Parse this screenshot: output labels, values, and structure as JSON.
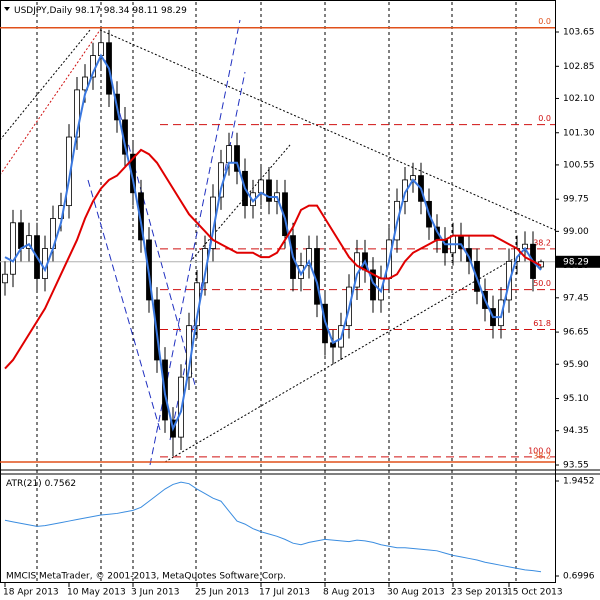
{
  "chart_data": {
    "type": "candlestick",
    "symbol": "USDJPY,Daily",
    "ylim": [
      93.48,
      104.35
    ],
    "yticks": [
      103.65,
      102.85,
      {
        "value": 102.1,
        "label": "102.10"
      },
      {
        "value": 101.3,
        "label": "101.30"
      },
      100.55,
      99.75,
      {
        "value": 99.0,
        "label": "99.00"
      },
      {
        "value": 98.2,
        "label": "98.20"
      },
      97.45,
      96.65,
      {
        "value": 95.9,
        "label": "95.90"
      },
      {
        "value": 95.1,
        "label": "95.10"
      },
      94.35,
      93.55
    ],
    "xticks": [
      {
        "value": 0,
        "label": "18 Apr 2013"
      },
      {
        "value": 8,
        "label": "10 May 2013"
      },
      {
        "value": 16,
        "label": "3 Jun 2013"
      },
      {
        "value": 24,
        "label": "25 Jun 2013"
      },
      {
        "value": 32,
        "label": "17 Jul 2013"
      },
      {
        "value": 40,
        "label": "8 Aug 2013"
      },
      {
        "value": 48,
        "label": "30 Aug 2013"
      },
      {
        "value": 56,
        "label": "23 Sep 2013"
      },
      {
        "value": 63,
        "label": "15 Oct 2013"
      }
    ],
    "bull_color": "#ffffff",
    "bear_color": "#000000",
    "open": [
      97.8,
      98.0,
      99.2,
      98.6,
      98.9,
      97.9,
      98.6,
      99.3,
      99.6,
      101.2,
      102.3,
      102.6,
      103.1,
      103.4,
      102.2,
      101.6,
      100.8,
      99.9,
      98.8,
      97.4,
      96.0,
      94.6,
      94.2,
      95.6,
      96.8,
      97.8,
      98.6,
      99.8,
      100.6,
      101.0,
      100.4,
      99.6,
      99.9,
      100.2,
      99.7,
      99.9,
      98.9,
      97.9,
      98.2,
      98.6,
      97.3,
      96.4,
      96.3,
      96.8,
      97.7,
      98.5,
      98.1,
      97.4,
      97.9,
      98.8,
      99.7,
      100.2,
      100.3,
      99.7,
      99.1,
      98.8,
      98.5,
      98.9,
      98.6,
      98.3,
      97.6,
      97.2,
      96.8,
      97.4,
      98.3,
      98.6,
      98.7,
      98.17
    ],
    "high": [
      98.3,
      99.5,
      99.5,
      99.2,
      99.2,
      98.9,
      99.6,
      99.9,
      101.5,
      102.6,
      102.9,
      103.4,
      103.74,
      103.7,
      102.5,
      101.9,
      101.1,
      100.2,
      99.1,
      97.7,
      96.3,
      94.9,
      95.9,
      97.1,
      98.1,
      98.9,
      100.1,
      100.9,
      101.3,
      101.3,
      100.7,
      100.2,
      100.5,
      100.5,
      100.2,
      100.2,
      99.2,
      98.5,
      98.9,
      98.9,
      97.6,
      96.7,
      97.1,
      98.0,
      98.8,
      98.8,
      98.4,
      98.2,
      99.1,
      100.0,
      100.5,
      100.6,
      100.6,
      100.0,
      99.4,
      99.1,
      99.2,
      99.2,
      98.9,
      98.6,
      97.9,
      97.5,
      97.7,
      98.6,
      98.9,
      99.0,
      99.0,
      98.34
    ],
    "low": [
      97.5,
      97.7,
      98.3,
      98.3,
      97.6,
      97.6,
      98.3,
      99.0,
      99.3,
      100.9,
      102.0,
      102.3,
      102.8,
      101.9,
      101.3,
      100.5,
      99.6,
      98.5,
      97.1,
      95.7,
      94.3,
      93.75,
      93.9,
      95.3,
      96.5,
      97.5,
      98.3,
      99.5,
      100.3,
      100.1,
      99.3,
      99.3,
      99.6,
      99.4,
      99.4,
      98.6,
      97.6,
      97.6,
      97.9,
      97.0,
      96.1,
      95.9,
      96.0,
      96.5,
      97.4,
      97.8,
      97.1,
      97.1,
      97.6,
      98.5,
      99.4,
      99.9,
      99.4,
      98.8,
      98.5,
      98.2,
      98.2,
      98.3,
      98.0,
      97.3,
      96.9,
      96.5,
      96.5,
      97.1,
      98.0,
      98.3,
      97.6,
      98.11
    ],
    "close": [
      98.0,
      99.2,
      98.6,
      98.9,
      97.9,
      98.6,
      99.3,
      99.6,
      101.2,
      102.3,
      102.6,
      103.1,
      103.4,
      102.2,
      101.6,
      100.8,
      99.9,
      98.8,
      97.4,
      96.0,
      94.6,
      94.2,
      95.6,
      96.8,
      97.8,
      98.6,
      99.8,
      100.6,
      101.0,
      100.4,
      99.6,
      99.9,
      100.2,
      99.7,
      99.9,
      98.9,
      97.9,
      98.2,
      98.6,
      97.3,
      96.4,
      96.3,
      96.8,
      97.7,
      98.5,
      98.1,
      97.4,
      97.9,
      98.8,
      99.7,
      100.2,
      100.3,
      99.7,
      99.1,
      98.8,
      98.5,
      98.9,
      98.6,
      98.3,
      97.6,
      97.2,
      96.8,
      97.4,
      98.3,
      98.6,
      98.7,
      97.9,
      98.29
    ],
    "overlays": [
      {
        "color": "#3a78e0",
        "values": [
          98.4,
          98.3,
          98.6,
          98.7,
          98.4,
          98.1,
          98.6,
          99.2,
          100.2,
          101.3,
          102.2,
          102.7,
          103.1,
          102.8,
          101.9,
          101.0,
          100.2,
          99.2,
          98.0,
          96.6,
          95.2,
          94.4,
          94.8,
          95.8,
          97.0,
          98.0,
          99.0,
          100.0,
          100.6,
          100.6,
          100.0,
          99.7,
          99.9,
          99.8,
          99.8,
          99.3,
          98.4,
          98.0,
          98.3,
          97.8,
          96.9,
          96.4,
          96.5,
          97.2,
          98.0,
          98.3,
          97.8,
          97.6,
          98.3,
          99.2,
          99.9,
          100.2,
          100.0,
          99.4,
          99.0,
          98.7,
          98.7,
          98.7,
          98.4,
          97.9,
          97.4,
          97.0,
          97.0,
          97.8,
          98.4,
          98.6,
          98.3,
          98.1
        ]
      },
      {
        "color": "#e00000",
        "values": [
          95.8,
          96.0,
          96.3,
          96.6,
          96.9,
          97.2,
          97.6,
          98.0,
          98.4,
          98.8,
          99.3,
          99.7,
          100.0,
          100.2,
          100.3,
          100.5,
          100.7,
          100.9,
          100.8,
          100.6,
          100.3,
          100.0,
          99.7,
          99.4,
          99.2,
          99.0,
          98.8,
          98.7,
          98.6,
          98.5,
          98.5,
          98.5,
          98.4,
          98.4,
          98.5,
          98.8,
          99.1,
          99.5,
          99.6,
          99.6,
          99.3,
          99.0,
          98.7,
          98.4,
          98.2,
          98.1,
          98.0,
          97.9,
          97.9,
          98.0,
          98.3,
          98.5,
          98.6,
          98.7,
          98.8,
          98.8,
          98.9,
          98.9,
          98.9,
          98.9,
          98.9,
          98.9,
          98.8,
          98.7,
          98.6,
          98.4,
          98.3,
          98.2
        ]
      }
    ],
    "fib_levels": [
      {
        "label": "0.0",
        "value": 103.75,
        "color": "#e0501b",
        "dashed": false
      },
      {
        "label": "0.0",
        "value": 101.49,
        "color": "#d01010",
        "dashed": true
      },
      {
        "label": "38.2",
        "value": 98.59,
        "color": "#d01010",
        "dashed": true
      },
      {
        "label": "50.0",
        "value": 97.64,
        "color": "#d01010",
        "dashed": true
      },
      {
        "label": "61.8",
        "value": 96.71,
        "color": "#d01010",
        "dashed": true
      },
      {
        "label": "100.0",
        "value": 93.74,
        "color": "#d01010",
        "dashed": true
      },
      {
        "label": "38.2",
        "value": 93.62,
        "color": "#e0501b",
        "dashed": false
      }
    ],
    "indicator": {
      "name": "ATR(21)",
      "color": "#3b8de0",
      "ylim": [
        0.608,
        2.037
      ],
      "yticks": [
        1.9452,
        0.6996
      ],
      "values": [
        1.43,
        1.41,
        1.39,
        1.37,
        1.35,
        1.36,
        1.38,
        1.4,
        1.42,
        1.44,
        1.46,
        1.48,
        1.5,
        1.51,
        1.52,
        1.54,
        1.56,
        1.6,
        1.68,
        1.76,
        1.84,
        1.9,
        1.93,
        1.91,
        1.84,
        1.78,
        1.72,
        1.68,
        1.55,
        1.42,
        1.38,
        1.32,
        1.28,
        1.25,
        1.22,
        1.18,
        1.13,
        1.11,
        1.14,
        1.16,
        1.18,
        1.17,
        1.16,
        1.15,
        1.17,
        1.16,
        1.14,
        1.11,
        1.09,
        1.07,
        1.07,
        1.06,
        1.05,
        1.04,
        1.03,
        1.0,
        0.97,
        0.95,
        0.93,
        0.91,
        0.88,
        0.86,
        0.84,
        0.82,
        0.8,
        0.78,
        0.77,
        0.7562
      ]
    },
    "copyright": "MMCIS MetaTrader, © 2001-2013, MetaQuotes Software Corp."
  }
}
